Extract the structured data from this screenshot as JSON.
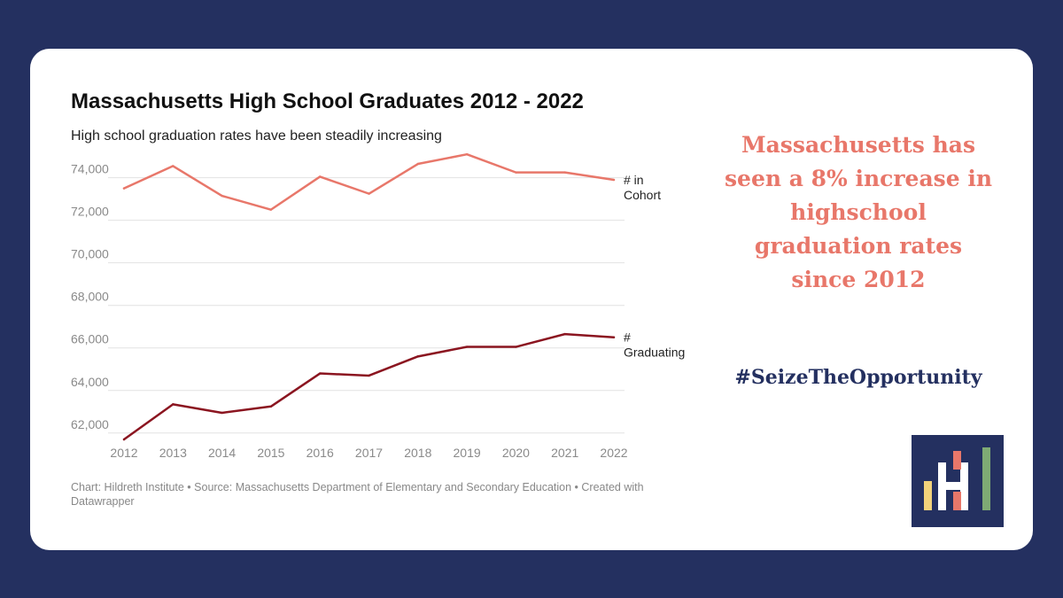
{
  "title": "Massachusetts High School Graduates 2012 - 2022",
  "subtitle": "High school graduation rates have been steadily increasing",
  "footer": "Chart: Hildreth Institute • Source: Massachusetts Department of Elementary and Secondary Education • Created with Datawrapper",
  "callout": "Massachusetts has seen a 8% increase in highschool graduation rates since 2012",
  "hashtag": "#SeizeTheOpportunity",
  "colors": {
    "background": "#243060",
    "cohort_line": "#e8776a",
    "graduating_line": "#8b1520",
    "callout_text": "#e8776a",
    "hashtag_text": "#243060",
    "logo_bg": "#243060",
    "logo_yellow": "#f2d27a",
    "logo_red": "#e8776a",
    "logo_green": "#7faa74"
  },
  "logo": {
    "icon": "hildreth-institute-logo"
  },
  "chart_data": {
    "type": "line",
    "title": "Massachusetts High School Graduates 2012 - 2022",
    "subtitle": "High school graduation rates have been steadily increasing",
    "xlabel": "",
    "ylabel": "",
    "x": [
      2012,
      2013,
      2014,
      2015,
      2016,
      2017,
      2018,
      2019,
      2020,
      2021,
      2022
    ],
    "ylim": [
      61700,
      75400
    ],
    "yticks": [
      62000,
      64000,
      66000,
      68000,
      70000,
      72000,
      74000
    ],
    "ytick_labels": [
      "62,000",
      "64,000",
      "66,000",
      "68,000",
      "70,000",
      "72,000",
      "74,000"
    ],
    "grid": true,
    "series": [
      {
        "name": "# in Cohort",
        "label_lines": [
          "# in",
          "Cohort"
        ],
        "color": "#e8776a",
        "values": [
          73500,
          74550,
          73150,
          72500,
          74050,
          73250,
          74650,
          75100,
          74250,
          74250,
          73900
        ]
      },
      {
        "name": "# Graduating",
        "label_lines": [
          "#",
          "Graduating"
        ],
        "color": "#8b1520",
        "values": [
          61700,
          63350,
          62950,
          63250,
          64800,
          64700,
          65600,
          66050,
          66050,
          66650,
          66500
        ]
      }
    ]
  }
}
